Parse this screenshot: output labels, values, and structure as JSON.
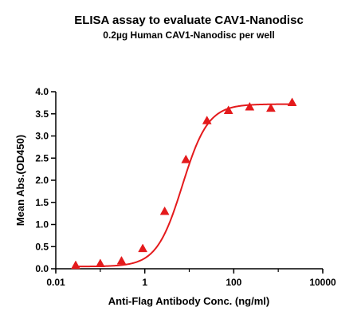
{
  "chart_data": {
    "type": "scatter",
    "title": "ELISA assay to evaluate CAV1-Nanodisc",
    "subtitle": "0.2µg Human CAV1-Nanodisc per well",
    "xlabel": "Anti-Flag Antibody Conc. (ng/ml)",
    "ylabel": "Mean Abs.(OD450)",
    "x_scale": "log",
    "xlim": [
      0.01,
      10000
    ],
    "ylim": [
      0.0,
      4.0
    ],
    "x_ticks": [
      "0.01",
      "1",
      "100",
      "10000"
    ],
    "y_ticks": [
      "0.0",
      "0.5",
      "1.0",
      "1.5",
      "2.0",
      "2.5",
      "3.0",
      "3.5",
      "4.0"
    ],
    "grid": false,
    "color": "#e41a1c",
    "marker": "triangle",
    "series": [
      {
        "x": [
          0.028,
          0.1,
          0.3,
          0.9,
          2.8,
          8.4,
          25,
          76,
          228,
          683,
          2050
        ],
        "y": [
          0.08,
          0.12,
          0.18,
          0.46,
          1.3,
          2.47,
          3.35,
          3.58,
          3.66,
          3.63,
          3.76
        ]
      }
    ],
    "fit": {
      "bottom": 0.05,
      "top": 3.72,
      "ec50": 7.0,
      "hill": 1.5
    }
  }
}
